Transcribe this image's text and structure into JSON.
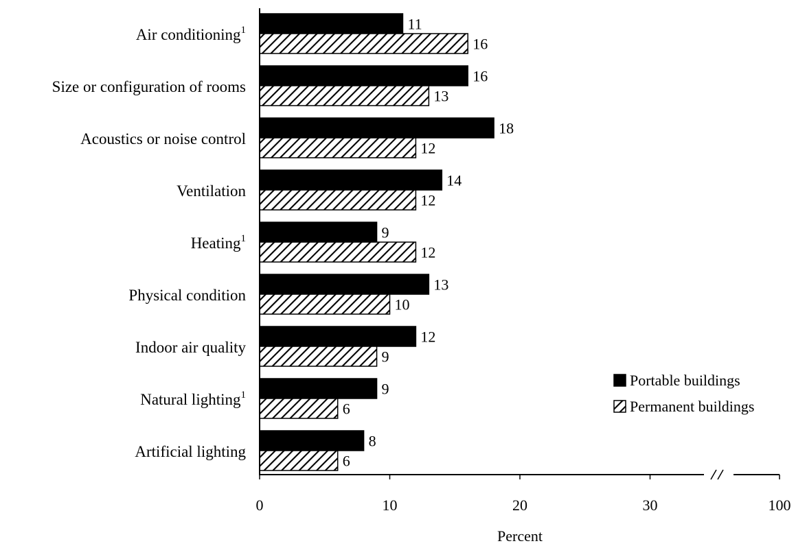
{
  "chart_data": {
    "type": "bar",
    "orientation": "horizontal",
    "categories": [
      {
        "label": "Air conditioning",
        "footnote": "1"
      },
      {
        "label": "Size or configuration of rooms",
        "footnote": ""
      },
      {
        "label": "Acoustics or noise control",
        "footnote": ""
      },
      {
        "label": "Ventilation",
        "footnote": ""
      },
      {
        "label": "Heating",
        "footnote": "1"
      },
      {
        "label": "Physical condition",
        "footnote": ""
      },
      {
        "label": "Indoor air quality",
        "footnote": ""
      },
      {
        "label": "Natural lighting",
        "footnote": "1"
      },
      {
        "label": "Artificial lighting",
        "footnote": ""
      }
    ],
    "series": [
      {
        "name": "Portable buildings",
        "values": [
          11,
          16,
          18,
          14,
          9,
          13,
          12,
          9,
          8
        ],
        "color": "#000000",
        "pattern": "solid"
      },
      {
        "name": "Permanent buildings",
        "values": [
          16,
          13,
          12,
          12,
          12,
          10,
          9,
          6,
          6
        ],
        "color": "#000000",
        "pattern": "diagonal-hatch"
      }
    ],
    "x_ticks": [
      {
        "label": "0",
        "value": 0
      },
      {
        "label": "10",
        "value": 10
      },
      {
        "label": "20",
        "value": 20
      },
      {
        "label": "30",
        "value": 30
      },
      {
        "label": "100",
        "value": 100
      }
    ],
    "axis_break": true,
    "xlabel": "Percent",
    "ylabel": "",
    "title": "",
    "grid": false,
    "legend_position": "bottom-right"
  }
}
